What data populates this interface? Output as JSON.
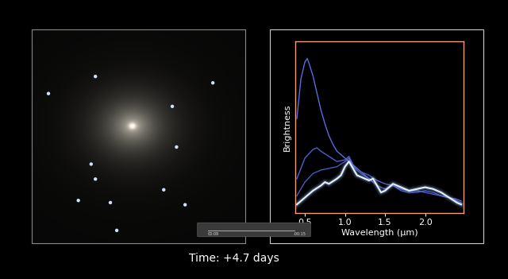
{
  "chart_data": {
    "type": "line",
    "xlabel": "Wavelength (μm)",
    "ylabel": "Brightness",
    "caption": "Time: +4.7 days",
    "player": {
      "elapsed": "00:09",
      "remaining": "-00:15"
    },
    "xlim": [
      0.38,
      2.48
    ],
    "xticks": [
      0.5,
      1.0,
      1.5,
      2.0
    ],
    "ylim": [
      0,
      1
    ],
    "tick_labels": "x",
    "grid": false,
    "series": [
      {
        "color": "#5a6ae0",
        "x": [
          0.4,
          0.45,
          0.5,
          0.53,
          0.56,
          0.6,
          0.65,
          0.7,
          0.75,
          0.8,
          0.85,
          0.9,
          0.95,
          1.0,
          1.05,
          1.1,
          1.15,
          1.2,
          1.25,
          1.3,
          1.35
        ],
        "values": [
          0.55,
          0.78,
          0.88,
          0.9,
          0.86,
          0.8,
          0.7,
          0.6,
          0.52,
          0.45,
          0.4,
          0.36,
          0.34,
          0.32,
          0.3,
          0.28,
          0.26,
          0.24,
          0.22,
          0.2,
          0.18
        ]
      },
      {
        "color": "#5060d0",
        "x": [
          0.4,
          0.5,
          0.6,
          0.65,
          0.7,
          0.8,
          0.9,
          1.0,
          1.05,
          1.1,
          1.2,
          1.3,
          1.4,
          1.5,
          1.6,
          1.7,
          1.8,
          1.9,
          2.0,
          2.1,
          2.2,
          2.3,
          2.4,
          2.45
        ],
        "values": [
          0.2,
          0.32,
          0.37,
          0.38,
          0.36,
          0.33,
          0.3,
          0.31,
          0.33,
          0.28,
          0.24,
          0.22,
          0.19,
          0.17,
          0.16,
          0.14,
          0.13,
          0.13,
          0.12,
          0.11,
          0.1,
          0.09,
          0.08,
          0.07
        ]
      },
      {
        "color": "#4a58c0",
        "x": [
          0.4,
          0.5,
          0.6,
          0.7,
          0.8,
          0.9,
          1.0,
          1.05,
          1.1,
          1.2,
          1.3,
          1.4,
          1.5,
          1.6,
          1.7,
          1.8,
          1.9,
          2.0,
          2.1,
          2.2,
          2.3,
          2.4,
          2.45
        ],
        "values": [
          0.1,
          0.18,
          0.23,
          0.25,
          0.26,
          0.27,
          0.3,
          0.32,
          0.27,
          0.23,
          0.2,
          0.16,
          0.14,
          0.16,
          0.13,
          0.12,
          0.12,
          0.13,
          0.12,
          0.1,
          0.09,
          0.07,
          0.06
        ]
      },
      {
        "color": "#e8f0ff",
        "x": [
          0.4,
          0.5,
          0.6,
          0.7,
          0.75,
          0.8,
          0.9,
          0.95,
          1.0,
          1.05,
          1.1,
          1.15,
          1.2,
          1.3,
          1.35,
          1.4,
          1.45,
          1.5,
          1.6,
          1.7,
          1.8,
          1.9,
          2.0,
          2.1,
          2.2,
          2.3,
          2.4,
          2.45
        ],
        "values": [
          0.05,
          0.09,
          0.13,
          0.16,
          0.18,
          0.17,
          0.2,
          0.22,
          0.27,
          0.3,
          0.26,
          0.22,
          0.21,
          0.19,
          0.2,
          0.16,
          0.12,
          0.13,
          0.17,
          0.15,
          0.13,
          0.14,
          0.15,
          0.14,
          0.12,
          0.09,
          0.06,
          0.05
        ]
      }
    ]
  }
}
